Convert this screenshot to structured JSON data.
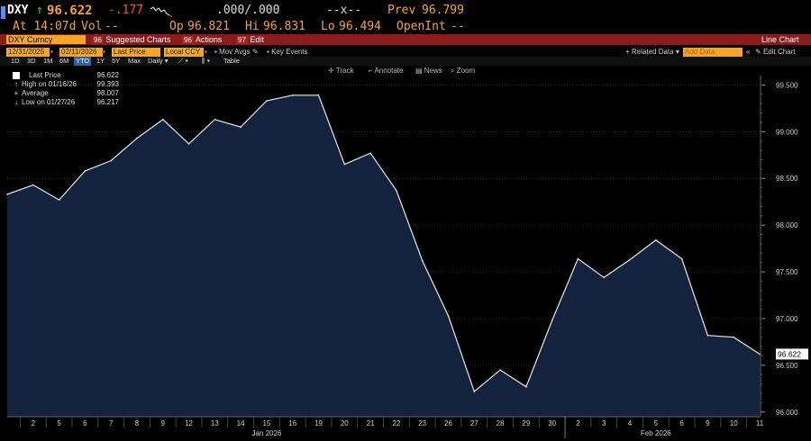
{
  "quote": {
    "ticker": "DXY",
    "arrow": "↑",
    "price": "96.622",
    "change": "-.177",
    "bidask": ".000/.000",
    "size": "--x--",
    "prev_label": "Prev",
    "prev_value": "96.799",
    "time_label": "At 14:07d",
    "vol_label": "Vol",
    "vol_value": "--",
    "open_label": "Op",
    "open_value": "96.821",
    "high_label": "Hi",
    "high_value": "96.831",
    "low_label": "Lo",
    "low_value": "96.494",
    "oi_label": "OpenInt",
    "oi_value": "--"
  },
  "menu": {
    "security": "DXY Curncy",
    "suggested_num": "96",
    "suggested": "Suggested Charts",
    "actions_num": "96",
    "actions": "Actions",
    "edit_num": "97",
    "edit": "Edit",
    "chart_type": "Line Chart"
  },
  "params": {
    "start_date": "12/31/2025",
    "end_date": "02/11/2026",
    "field": "Last Price",
    "currency": "Local CCY",
    "mov_avgs": "Mov Avgs",
    "key_events": "Key Events",
    "related": "Related Data",
    "add_data": "Add Data",
    "edit_chart": "Edit Chart"
  },
  "ranges": {
    "items": [
      "1D",
      "3D",
      "1M",
      "6M",
      "YTD",
      "1Y",
      "5Y",
      "Max"
    ],
    "selected": "YTD",
    "period": "Daily",
    "table": "Table"
  },
  "toolbar": {
    "track": "Track",
    "annotate": "Annotate",
    "news": "News",
    "zoom": "Zoom"
  },
  "legend": {
    "last_label": "Last Price",
    "last_value": "96.622",
    "high_label": "High on 01/16/26",
    "high_value": "99.393",
    "avg_label": "Average",
    "avg_value": "98.007",
    "low_label": "Low on 01/27/26",
    "low_value": "96.217"
  },
  "colors": {
    "line": "#e8e8e8",
    "fill": "#14233d",
    "accent": "#f5a623",
    "menubar": "#8b1a1a",
    "negative": "#ff4b4b"
  },
  "chart_data": {
    "type": "area",
    "title": "",
    "xlabel": "",
    "ylabel": "",
    "ylim": [
      95.95,
      99.6
    ],
    "y_ticks": [
      "99.500",
      "99.000",
      "98.500",
      "98.000",
      "97.500",
      "97.000",
      "96.500",
      "96.000"
    ],
    "y_tick_values": [
      99.5,
      99.0,
      98.5,
      98.0,
      97.5,
      97.0,
      96.5,
      96.0
    ],
    "x": [
      "12/31",
      "2",
      "5",
      "6",
      "7",
      "8",
      "9",
      "12",
      "13",
      "14",
      "15",
      "16",
      "19",
      "20",
      "21",
      "22",
      "23",
      "26",
      "27",
      "28",
      "29",
      "30",
      "2",
      "3",
      "4",
      "5",
      "6",
      "9",
      "10",
      "11"
    ],
    "x_tick_labels": [
      "2",
      "5",
      "6",
      "7",
      "8",
      "9",
      "12",
      "13",
      "14",
      "15",
      "16",
      "19",
      "20",
      "21",
      "22",
      "23",
      "26",
      "27",
      "28",
      "29",
      "30",
      "2",
      "3",
      "4",
      "5",
      "6",
      "9",
      "10",
      "11"
    ],
    "month_labels": [
      {
        "label": "Jan 2026",
        "after_index": 10
      },
      {
        "label": "Feb 2026",
        "after_index": 25
      }
    ],
    "series": [
      {
        "values": [
          98.33,
          98.43,
          98.27,
          98.58,
          98.69,
          98.93,
          99.13,
          98.87,
          99.13,
          99.05,
          99.33,
          99.39,
          99.39,
          98.65,
          98.77,
          98.37,
          97.62,
          97.03,
          96.22,
          96.45,
          96.27,
          96.98,
          97.64,
          97.44,
          97.63,
          97.84,
          97.64,
          96.82,
          96.8,
          96.62
        ]
      }
    ],
    "last_value_label": "96.622",
    "grid": true,
    "legend_position": "top-left"
  }
}
